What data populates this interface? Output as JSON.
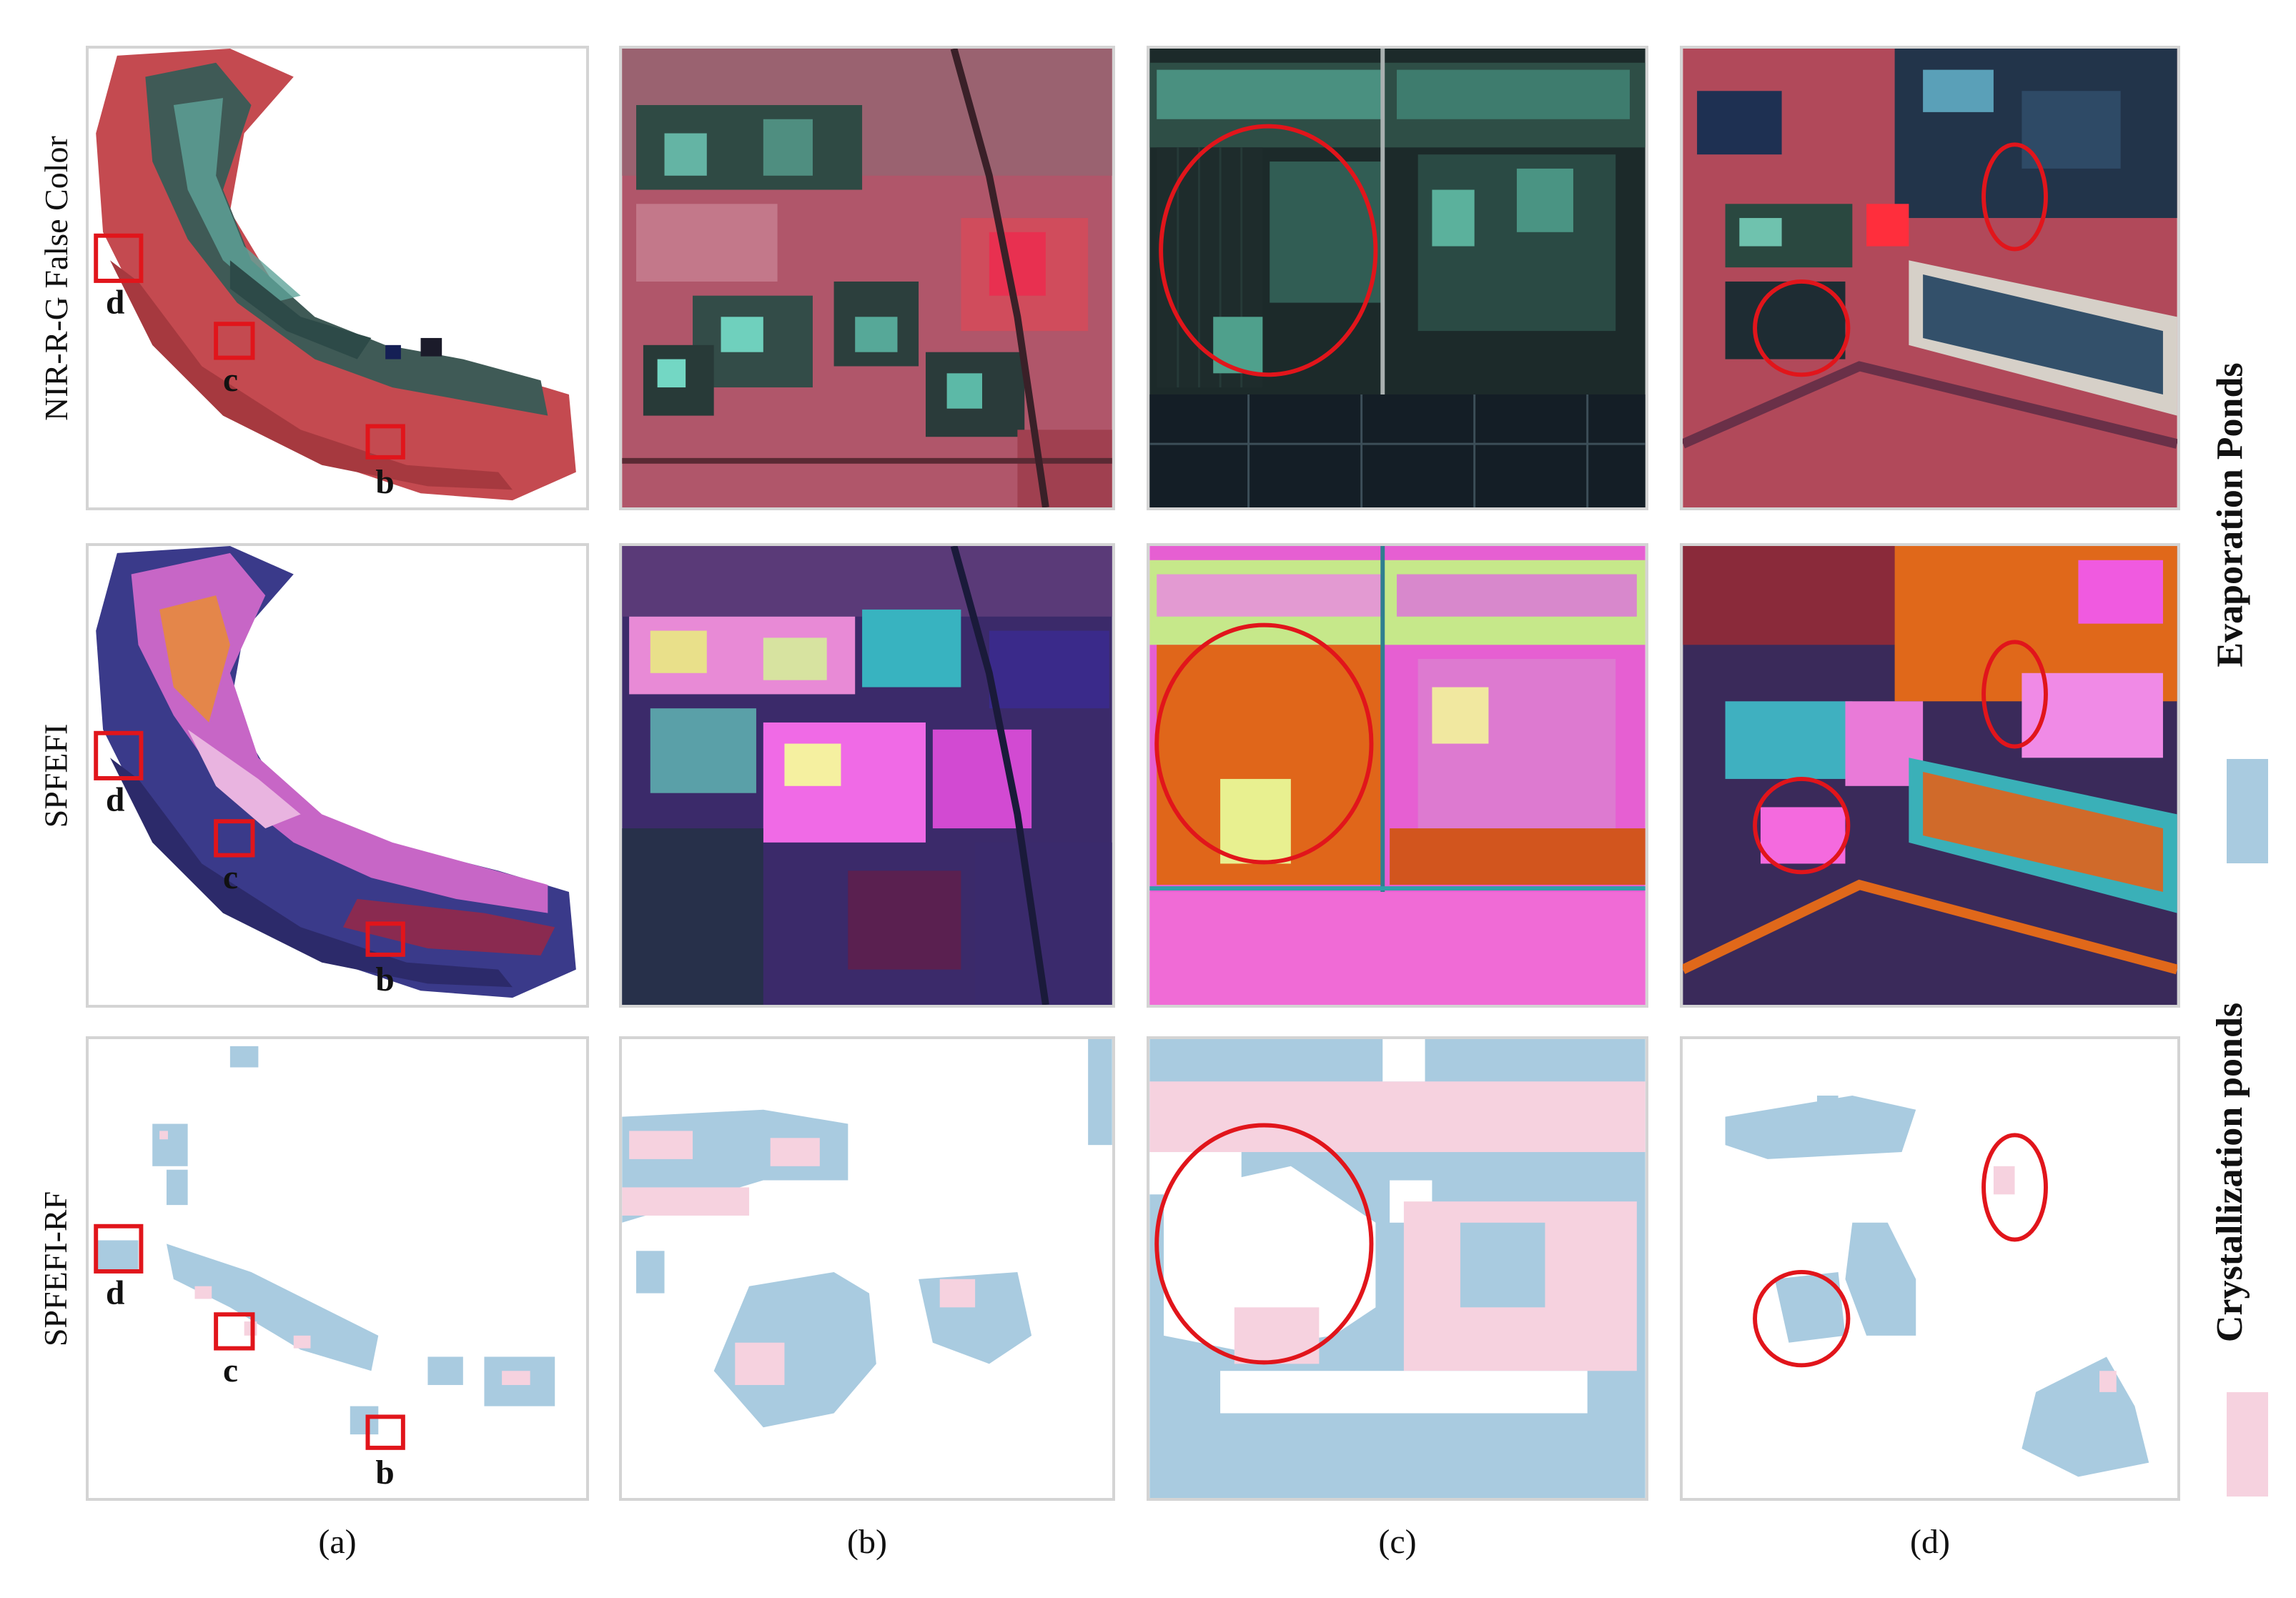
{
  "row_labels": [
    "NIR-R-G False Color",
    "SPFEFI",
    "SPFEFI-RF"
  ],
  "column_labels": [
    "(a)",
    "(b)",
    "(c)",
    "(d)"
  ],
  "region_markers": [
    "b",
    "c",
    "d"
  ],
  "legend": {
    "evaporation": {
      "label": "Evaporation Ponds",
      "color": "#a9cbe0"
    },
    "crystallization": {
      "label": "Crystallization ponds",
      "color": "#f6d2df"
    }
  },
  "highlight_color": "#e1151b"
}
